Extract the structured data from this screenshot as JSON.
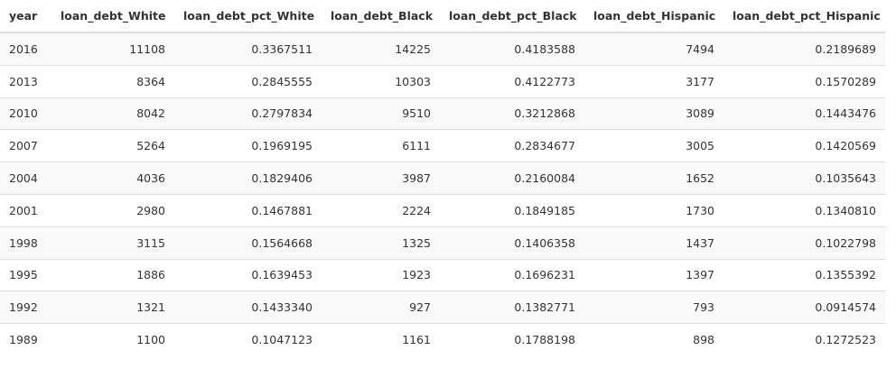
{
  "table": {
    "headers": [
      "year",
      "loan_debt_White",
      "loan_debt_pct_White",
      "loan_debt_Black",
      "loan_debt_pct_Black",
      "loan_debt_Hispanic",
      "loan_debt_pct_Hispanic"
    ],
    "rows": [
      [
        "2016",
        "11108",
        "0.3367511",
        "14225",
        "0.4183588",
        "7494",
        "0.2189689"
      ],
      [
        "2013",
        "8364",
        "0.2845555",
        "10303",
        "0.4122773",
        "3177",
        "0.1570289"
      ],
      [
        "2010",
        "8042",
        "0.2797834",
        "9510",
        "0.3212868",
        "3089",
        "0.1443476"
      ],
      [
        "2007",
        "5264",
        "0.1969195",
        "6111",
        "0.2834677",
        "3005",
        "0.1420569"
      ],
      [
        "2004",
        "4036",
        "0.1829406",
        "3987",
        "0.2160084",
        "1652",
        "0.1035643"
      ],
      [
        "2001",
        "2980",
        "0.1467881",
        "2224",
        "0.1849185",
        "1730",
        "0.1340810"
      ],
      [
        "1998",
        "3115",
        "0.1564668",
        "1325",
        "0.1406358",
        "1437",
        "0.1022798"
      ],
      [
        "1995",
        "1886",
        "0.1639453",
        "1923",
        "0.1696231",
        "1397",
        "0.1355392"
      ],
      [
        "1992",
        "1321",
        "0.1433340",
        "927",
        "0.1382771",
        "793",
        "0.0914574"
      ],
      [
        "1989",
        "1100",
        "0.1047123",
        "1161",
        "0.1788198",
        "898",
        "0.1272523"
      ]
    ]
  },
  "colors": {
    "text": "#333333",
    "border": "#dddddd",
    "row_stripe": "#f9f9f9",
    "background": "#ffffff"
  }
}
